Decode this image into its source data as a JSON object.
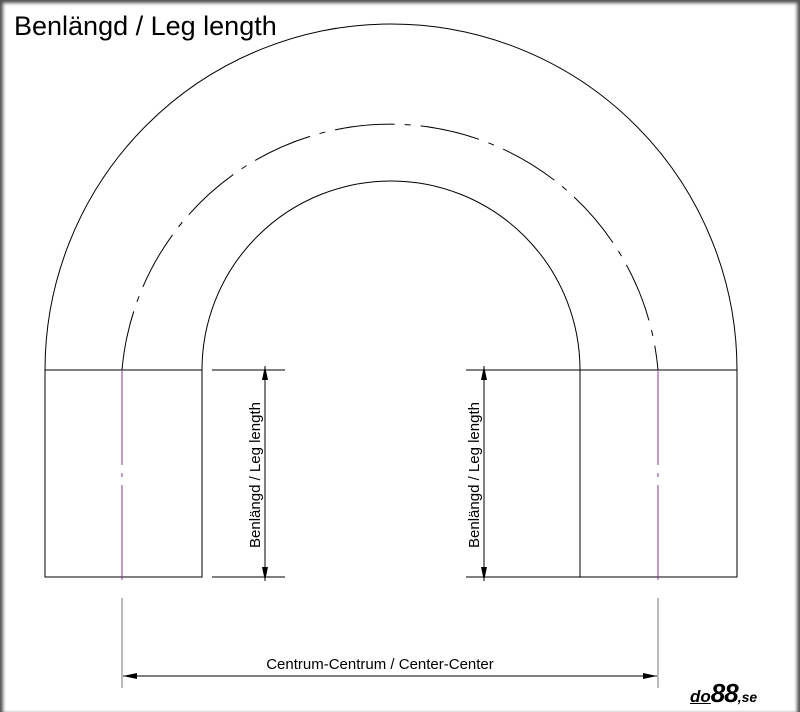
{
  "title": "Benlängd / Leg length",
  "dimensions": {
    "leg_length_left": "Benlängd / Leg length",
    "leg_length_right": "Benlängd / Leg length",
    "center_center": "Centrum-Centrum / Center-Center"
  },
  "logo": {
    "part1": "do",
    "part2": "88",
    "part3": ",se"
  },
  "colors": {
    "centerline": "#8b3a8b",
    "lines": "#000000"
  }
}
